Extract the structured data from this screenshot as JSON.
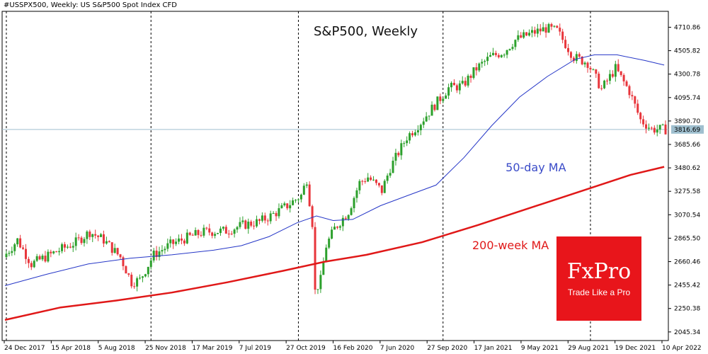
{
  "chart_header": "#USSPX500, Weekly:  US S&P500 Spot Index CFD",
  "watermark": {
    "name": "FxPro",
    "tagline": "Trade Like a Pro",
    "bg_color": "#e8151b"
  },
  "chart_data": {
    "type": "candlestick",
    "title": "S&P500, Weekly",
    "ylim": [
      1970,
      4850
    ],
    "y_ticks": [
      "4710.86",
      "4505.82",
      "4300.78",
      "4095.74",
      "3890.70",
      "3685.66",
      "3480.62",
      "3275.58",
      "3070.54",
      "2865.50",
      "2660.46",
      "2455.42",
      "2250.38",
      "2045.34"
    ],
    "x_ticks": [
      "24 Dec 2017",
      "15 Apr 2018",
      "5 Aug 2018",
      "25 Nov 2018",
      "17 Mar 2019",
      "7 Jul 2019",
      "27 Oct 2019",
      "16 Feb 2020",
      "7 Jun 2020",
      "27 Sep 2020",
      "17 Jan 2021",
      "9 May 2021",
      "29 Aug 2021",
      "19 Dec 2021",
      "10 Apr 2022"
    ],
    "current_price": "3816.69",
    "current_price_value": 3816.69,
    "colors": {
      "up": "#2ca02c",
      "down": "#e8353b",
      "ma50": "#2536c7",
      "ma200": "#e01818",
      "separator": "#000000",
      "price_line": "#9fbfcf"
    },
    "close_path": [
      [
        0,
        2700
      ],
      [
        5,
        2850
      ],
      [
        10,
        2640
      ],
      [
        15,
        2700
      ],
      [
        20,
        2760
      ],
      [
        26,
        2830
      ],
      [
        31,
        2920
      ],
      [
        36,
        2850
      ],
      [
        42,
        2700
      ],
      [
        46,
        2480
      ],
      [
        49,
        2500
      ],
      [
        54,
        2720
      ],
      [
        60,
        2810
      ],
      [
        66,
        2870
      ],
      [
        72,
        2920
      ],
      [
        80,
        2930
      ],
      [
        86,
        2980
      ],
      [
        92,
        3010
      ],
      [
        96,
        3060
      ],
      [
        102,
        3150
      ],
      [
        107,
        3240
      ],
      [
        109,
        3380
      ],
      [
        111,
        3000
      ],
      [
        112,
        2400
      ],
      [
        114,
        2500
      ],
      [
        116,
        2800
      ],
      [
        119,
        2950
      ],
      [
        124,
        3100
      ],
      [
        128,
        3350
      ],
      [
        131,
        3400
      ],
      [
        136,
        3280
      ],
      [
        139,
        3480
      ],
      [
        145,
        3750
      ],
      [
        150,
        3880
      ],
      [
        154,
        4000
      ],
      [
        160,
        4180
      ],
      [
        165,
        4200
      ],
      [
        170,
        4350
      ],
      [
        175,
        4450
      ],
      [
        180,
        4500
      ],
      [
        184,
        4600
      ],
      [
        190,
        4660
      ],
      [
        195,
        4700
      ],
      [
        199,
        4680
      ],
      [
        205,
        4450
      ],
      [
        210,
        4400
      ],
      [
        215,
        4170
      ],
      [
        220,
        4350
      ],
      [
        225,
        4150
      ],
      [
        229,
        3900
      ],
      [
        233,
        3820
      ],
      [
        237,
        3817
      ]
    ],
    "series": [
      {
        "name": "50-day MA",
        "values": [
          [
            0,
            2450
          ],
          [
            15,
            2550
          ],
          [
            30,
            2640
          ],
          [
            45,
            2690
          ],
          [
            60,
            2720
          ],
          [
            75,
            2760
          ],
          [
            85,
            2800
          ],
          [
            95,
            2880
          ],
          [
            105,
            3000
          ],
          [
            112,
            3060
          ],
          [
            118,
            3020
          ],
          [
            125,
            3030
          ],
          [
            135,
            3150
          ],
          [
            145,
            3240
          ],
          [
            155,
            3330
          ],
          [
            165,
            3570
          ],
          [
            175,
            3850
          ],
          [
            185,
            4100
          ],
          [
            195,
            4280
          ],
          [
            205,
            4430
          ],
          [
            212,
            4470
          ],
          [
            220,
            4470
          ],
          [
            230,
            4420
          ],
          [
            237,
            4380
          ]
        ]
      },
      {
        "name": "200-week MA",
        "values": [
          [
            0,
            2150
          ],
          [
            20,
            2260
          ],
          [
            40,
            2320
          ],
          [
            60,
            2390
          ],
          [
            80,
            2480
          ],
          [
            100,
            2580
          ],
          [
            115,
            2660
          ],
          [
            130,
            2720
          ],
          [
            150,
            2830
          ],
          [
            170,
            2980
          ],
          [
            190,
            3140
          ],
          [
            210,
            3300
          ],
          [
            225,
            3420
          ],
          [
            237,
            3490
          ]
        ]
      }
    ],
    "separators": [
      0.5,
      52.5,
      105.5,
      157.5,
      210.5
    ],
    "annotations": [
      {
        "text": "50-day MA",
        "x": 180,
        "y": 3450,
        "color": "#3a4bc8"
      },
      {
        "text": "200-week MA",
        "x": 168,
        "y": 2770,
        "color": "#e01818"
      }
    ]
  }
}
